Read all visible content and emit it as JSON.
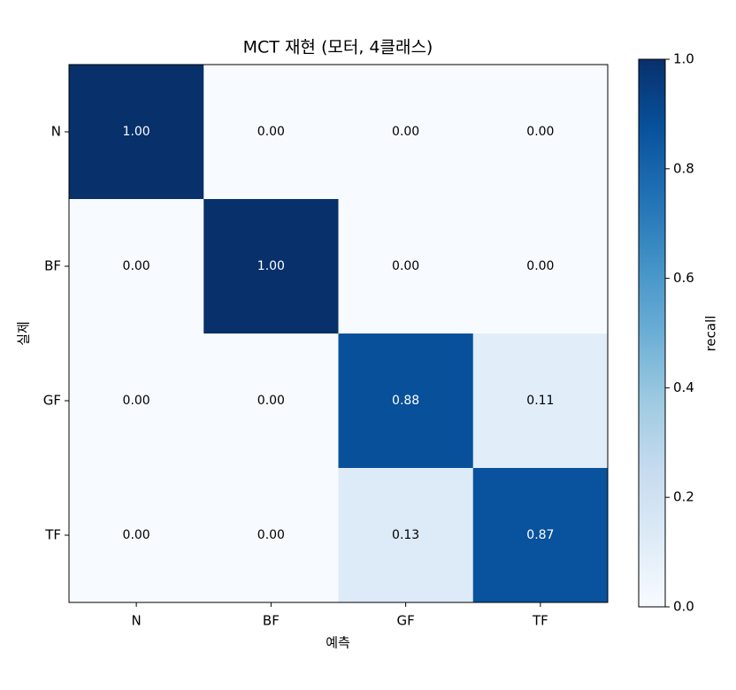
{
  "chart_data": {
    "type": "heatmap",
    "title": "MCT 재현 (모터, 4클래스)",
    "xlabel": "예측",
    "ylabel": "실제",
    "x_categories": [
      "N",
      "BF",
      "GF",
      "TF"
    ],
    "y_categories": [
      "N",
      "BF",
      "GF",
      "TF"
    ],
    "values": [
      [
        1.0,
        0.0,
        0.0,
        0.0
      ],
      [
        0.0,
        1.0,
        0.0,
        0.0
      ],
      [
        0.0,
        0.0,
        0.88,
        0.11
      ],
      [
        0.0,
        0.0,
        0.13,
        0.87
      ]
    ],
    "value_labels": [
      [
        "1.00",
        "0.00",
        "0.00",
        "0.00"
      ],
      [
        "0.00",
        "1.00",
        "0.00",
        "0.00"
      ],
      [
        "0.00",
        "0.00",
        "0.88",
        "0.11"
      ],
      [
        "0.00",
        "0.00",
        "0.13",
        "0.87"
      ]
    ],
    "colormap": "Blues",
    "colorbar_label": "recall",
    "zlim": [
      0,
      1
    ],
    "zticks": [
      {
        "value": 0,
        "label": "0.0"
      },
      {
        "value": 0.2,
        "label": "0.2"
      },
      {
        "value": 0.4,
        "label": "0.4"
      },
      {
        "value": 0.6,
        "label": "0.6"
      },
      {
        "value": 0.8,
        "label": "0.8"
      },
      {
        "value": 1,
        "label": "1.0"
      }
    ]
  }
}
